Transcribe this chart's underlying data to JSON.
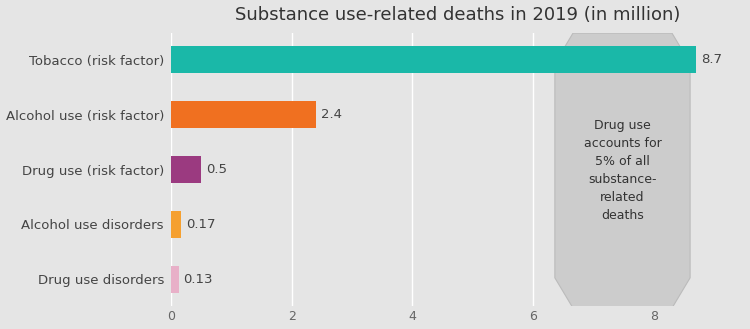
{
  "title": "Substance use-related deaths in 2019 (in million)",
  "categories": [
    "Drug use disorders",
    "Alcohol use disorders",
    "Drug use (risk factor)",
    "Alcohol use (risk factor)",
    "Tobacco (risk factor)"
  ],
  "values": [
    0.13,
    0.17,
    0.5,
    2.4,
    8.7
  ],
  "bar_colors": [
    "#e8b0c8",
    "#f5a030",
    "#9b3a80",
    "#f07020",
    "#1ab8a8"
  ],
  "value_labels": [
    "0.13",
    "0.17",
    "0.5",
    "2.4",
    "8.7"
  ],
  "background_color": "#e5e5e5",
  "title_fontsize": 13,
  "xlim": [
    0,
    9.5
  ],
  "xticks": [
    0,
    2,
    4,
    6,
    8
  ],
  "annotation_text": "Drug use\naccounts for\n5% of all\nsubstance-\nrelated\ndeaths",
  "grid_color": "#ffffff",
  "label_color": "#444444"
}
